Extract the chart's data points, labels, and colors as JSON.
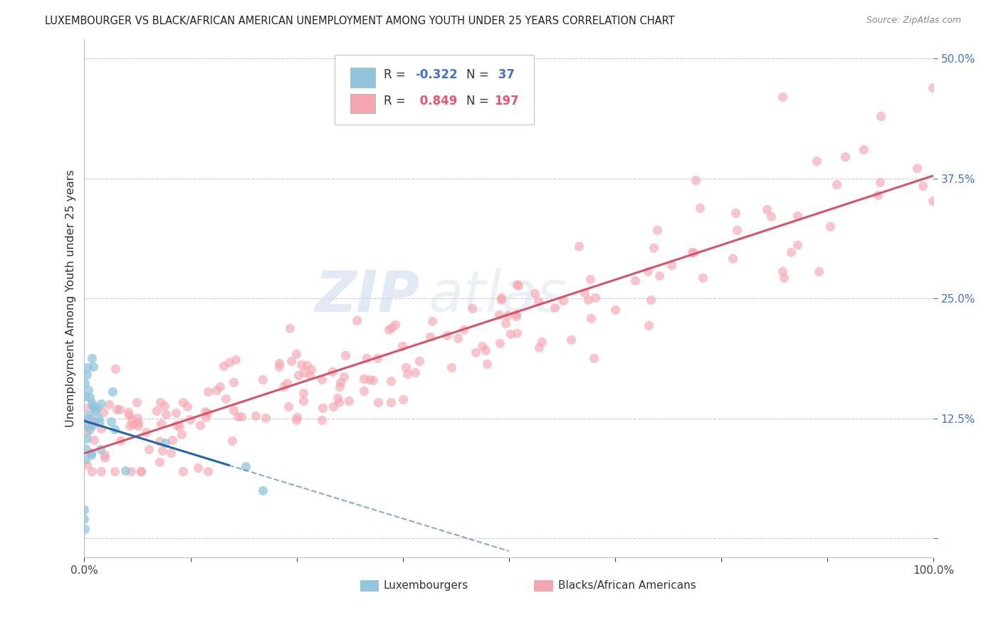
{
  "title": "LUXEMBOURGER VS BLACK/AFRICAN AMERICAN UNEMPLOYMENT AMONG YOUTH UNDER 25 YEARS CORRELATION CHART",
  "source": "Source: ZipAtlas.com",
  "ylabel": "Unemployment Among Youth under 25 years",
  "watermark_zip": "ZIP",
  "watermark_atlas": "atlas",
  "xlim": [
    0.0,
    1.0
  ],
  "ylim": [
    -0.02,
    0.52
  ],
  "xticks": [
    0.0,
    0.125,
    0.25,
    0.375,
    0.5,
    0.625,
    0.75,
    0.875,
    1.0
  ],
  "xticklabels": [
    "0.0%",
    "",
    "",
    "",
    "",
    "",
    "",
    "",
    "100.0%"
  ],
  "ytick_positions": [
    0.0,
    0.125,
    0.25,
    0.375,
    0.5
  ],
  "yticklabels": [
    "",
    "12.5%",
    "25.0%",
    "37.5%",
    "50.0%"
  ],
  "color_lux": "#92c5de",
  "color_baa": "#f4a6b0",
  "line_color_lux": "#2166ac",
  "line_color_baa": "#d6546a",
  "lux_r": -0.322,
  "lux_n": 37,
  "baa_r": 0.849,
  "baa_n": 197,
  "r1_color": "#4472c4",
  "r2_color": "#e8546a",
  "grid_color": "#cccccc",
  "tick_label_color": "#4472c4",
  "title_color": "#222222",
  "source_color": "#888888"
}
